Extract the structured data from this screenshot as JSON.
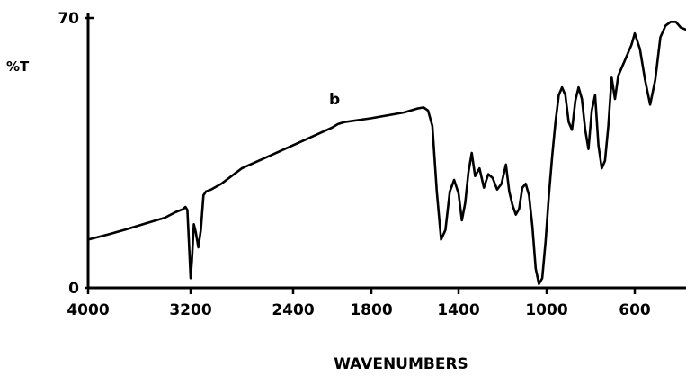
{
  "chart_data": {
    "type": "line",
    "title": "",
    "panel_label": "b",
    "xlabel": "WAVENUMBERS",
    "ylabel": "%T",
    "x_ticks": [
      {
        "value": 4000,
        "label": "4000"
      },
      {
        "value": 3200,
        "label": "3200"
      },
      {
        "value": 2400,
        "label": "2400"
      },
      {
        "value": 1800,
        "label": "1800"
      },
      {
        "value": 1400,
        "label": "1400"
      },
      {
        "value": 1000,
        "label": "1000"
      },
      {
        "value": 600,
        "label": "600"
      }
    ],
    "y_ticks": [
      {
        "value": 0,
        "label": "0"
      },
      {
        "value": 70,
        "label": "70"
      }
    ],
    "xlim": [
      4000,
      450
    ],
    "ylim": [
      0,
      70
    ],
    "axis_note": "x-axis scale changes at 2000 cm-1 (4000-2000 compressed, 2000-450 expanded)",
    "line_color": "#000000",
    "grid": false,
    "series": [
      {
        "name": "",
        "x": [
          4000,
          3850,
          3700,
          3550,
          3400,
          3320,
          3260,
          3240,
          3225,
          3215,
          3200,
          3190,
          3175,
          3160,
          3140,
          3120,
          3100,
          3080,
          3040,
          2960,
          2800,
          2600,
          2400,
          2200,
          2100,
          2050,
          2000,
          1800,
          1700,
          1650,
          1620,
          1590,
          1560,
          1540,
          1520,
          1500,
          1480,
          1460,
          1440,
          1420,
          1400,
          1385,
          1370,
          1355,
          1340,
          1325,
          1305,
          1285,
          1265,
          1245,
          1225,
          1205,
          1185,
          1170,
          1155,
          1140,
          1125,
          1110,
          1095,
          1080,
          1065,
          1050,
          1035,
          1020,
          1005,
          990,
          975,
          960,
          945,
          930,
          915,
          900,
          885,
          870,
          855,
          840,
          825,
          810,
          795,
          780,
          765,
          750,
          735,
          720,
          705,
          690,
          675,
          660,
          645,
          630,
          615,
          600,
          585,
          570,
          555,
          540,
          525,
          510,
          495,
          480,
          465,
          450
        ],
        "y": [
          12.5,
          13.8,
          15.2,
          16.7,
          18.2,
          19.6,
          20.4,
          21.0,
          20.2,
          13.0,
          2.5,
          7.0,
          16.5,
          14.5,
          10.5,
          15.0,
          24.0,
          25.0,
          25.5,
          27.0,
          31.0,
          34.0,
          37.0,
          40.0,
          41.5,
          42.5,
          43.0,
          44.0,
          45.0,
          45.5,
          46.0,
          46.5,
          46.8,
          46.0,
          42.0,
          25.0,
          12.5,
          15.0,
          25.0,
          28.0,
          24.5,
          17.5,
          22.0,
          30.0,
          35.0,
          29.0,
          31.0,
          26.0,
          29.5,
          28.5,
          25.5,
          27.0,
          32.0,
          25.0,
          21.5,
          19.0,
          20.5,
          26.0,
          27.0,
          24.0,
          16.0,
          5.0,
          1.0,
          2.5,
          12.0,
          24.0,
          34.0,
          43.0,
          50.0,
          52.0,
          50.0,
          43.0,
          41.0,
          48.5,
          52.0,
          49.0,
          41.0,
          36.0,
          46.0,
          50.0,
          37.0,
          31.0,
          33.0,
          42.0,
          54.5,
          49.0,
          55.0,
          57.0,
          59.0,
          61.0,
          63.0,
          66.0,
          62.0,
          54.0,
          47.5,
          54.0,
          65.0,
          68.0,
          69.0,
          69.0,
          67.5,
          67.0
        ]
      }
    ]
  }
}
